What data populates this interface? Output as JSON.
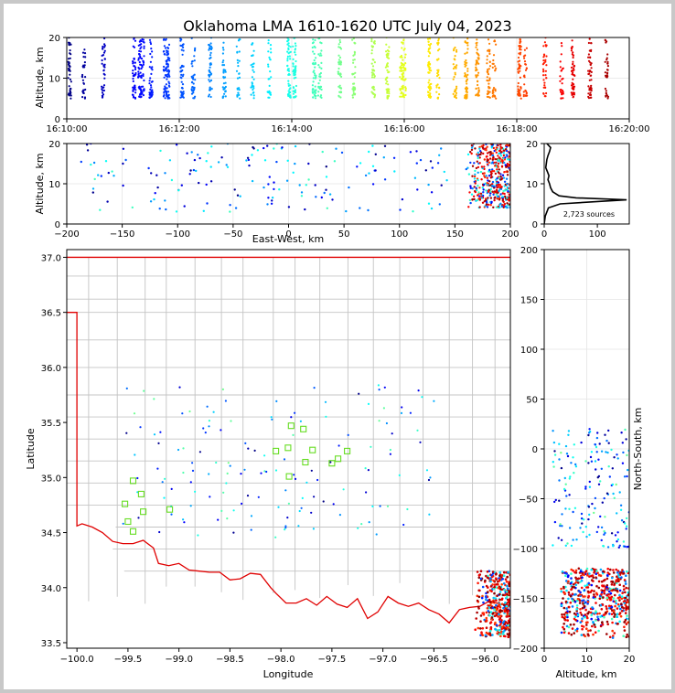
{
  "chart_data": [
    {
      "type": "scatter",
      "panel": "altitude-vs-time",
      "title": "Oklahoma LMA 1610-1620 UTC July 04, 2023",
      "xlabel": "",
      "ylabel": "Altitude, km",
      "xlim": [
        "16:10:00",
        "16:20:00"
      ],
      "xticks": [
        "16:10:00",
        "16:12:00",
        "16:14:00",
        "16:16:00",
        "16:18:00",
        "16:20:00"
      ],
      "ylim": [
        0,
        20
      ],
      "yticks": [
        "0",
        "10",
        "20"
      ],
      "grid": true,
      "flash_minutes": [
        0.05,
        0.3,
        0.65,
        1.2,
        1.3,
        1.35,
        1.5,
        1.75,
        1.8,
        2.05,
        2.25,
        2.55,
        2.8,
        3.05,
        3.3,
        3.6,
        3.95,
        4.05,
        4.4,
        4.5,
        4.85,
        5.1,
        5.45,
        5.7,
        5.95,
        6.0,
        6.45,
        6.6,
        6.9,
        7.1,
        7.3,
        7.5,
        7.6,
        8.05,
        8.15,
        8.5,
        8.8,
        9.0,
        9.3,
        9.6
      ],
      "color_scale": "time (blue to red)"
    },
    {
      "type": "scatter",
      "panel": "altitude-vs-east-west",
      "xlabel": "East-West, km",
      "ylabel": "Altitude, km",
      "xlim": [
        -200,
        200
      ],
      "xticks": [
        "−200",
        "−150",
        "−100",
        "−50",
        "0",
        "50",
        "100",
        "150",
        "200"
      ],
      "ylim": [
        0,
        20
      ],
      "yticks": [
        "0",
        "10",
        "20"
      ],
      "grid": true
    },
    {
      "type": "line",
      "panel": "altitude-histogram",
      "xlabel": "",
      "xlim": [
        0,
        160
      ],
      "xticks": [
        "0",
        "100"
      ],
      "ylim": [
        0,
        20
      ],
      "yticks": [
        "0",
        "10",
        "20"
      ],
      "annotation": "2,723 sources",
      "profile_altitude_km": [
        0,
        2,
        4,
        5,
        5.5,
        6,
        6.5,
        7,
        8,
        9,
        10,
        11,
        12,
        13,
        14,
        15,
        16,
        17,
        18,
        19,
        20
      ],
      "profile_counts": [
        0,
        2,
        8,
        30,
        90,
        155,
        60,
        28,
        16,
        12,
        10,
        7,
        9,
        6,
        3,
        4,
        5,
        7,
        10,
        12,
        5
      ]
    },
    {
      "type": "scatter",
      "panel": "plan-view-map",
      "xlabel": "Longitude",
      "ylabel": "Latitude",
      "xlim": [
        -100.1,
        -95.75
      ],
      "xticks": [
        "−100.0",
        "−99.5",
        "−99.0",
        "−98.5",
        "−98.0",
        "−97.5",
        "−97.0",
        "−96.5",
        "−96.0"
      ],
      "ylim": [
        33.45,
        37.07
      ],
      "yticks": [
        "33.5",
        "34.0",
        "34.5",
        "35.0",
        "35.5",
        "36.0",
        "36.5",
        "37.0"
      ],
      "stations_lonlat": [
        [
          -99.45,
          34.97
        ],
        [
          -99.37,
          34.85
        ],
        [
          -99.53,
          34.76
        ],
        [
          -99.35,
          34.69
        ],
        [
          -99.09,
          34.71
        ],
        [
          -99.5,
          34.6
        ],
        [
          -99.45,
          34.51
        ],
        [
          -97.9,
          35.47
        ],
        [
          -97.78,
          35.44
        ],
        [
          -97.93,
          35.27
        ],
        [
          -97.69,
          35.25
        ],
        [
          -98.05,
          35.24
        ],
        [
          -97.35,
          35.24
        ],
        [
          -97.44,
          35.17
        ],
        [
          -97.76,
          35.14
        ],
        [
          -97.5,
          35.13
        ],
        [
          -97.92,
          35.01
        ]
      ],
      "state_outline": "Oklahoma (red), county boundaries (grey)"
    },
    {
      "type": "scatter",
      "panel": "north-south-vs-altitude",
      "xlabel": "Altitude, km",
      "ylabel": "North-South, km",
      "xlim": [
        0,
        20
      ],
      "xticks": [
        "0",
        "10",
        "20"
      ],
      "ylim": [
        -200,
        200
      ],
      "yticks": [
        "−200",
        "−150",
        "−100",
        "−50",
        "0",
        "50",
        "100",
        "150",
        "200"
      ],
      "grid": true
    }
  ]
}
